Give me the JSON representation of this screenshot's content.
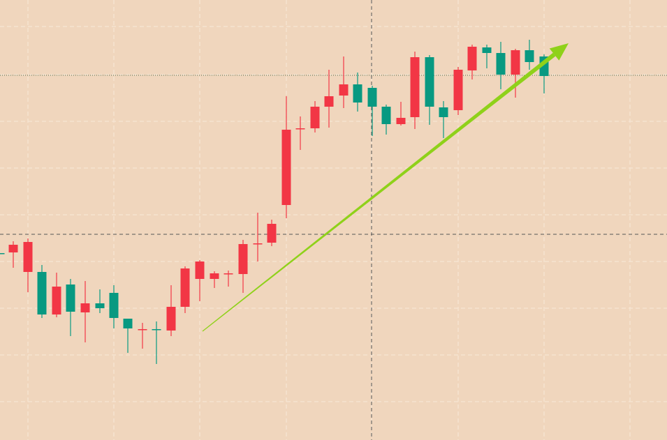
{
  "chart_data": {
    "type": "candlestick",
    "title": "",
    "xlabel": "",
    "ylabel": "",
    "ylim": [
      0,
      631
    ],
    "grid": true,
    "colors": {
      "background": "#f0d6bd",
      "grid": "#f6e3d0",
      "up": "#f23645",
      "down": "#089981",
      "arrow": "#8fd11a",
      "crosshair": "#555555",
      "level_line": "#4a6a4a"
    },
    "crosshair": {
      "x": 532,
      "y": 295
    },
    "level_line": 523,
    "trend_arrow": {
      "from": [
        290,
        156
      ],
      "to": [
        814,
        569
      ]
    },
    "candles": [
      {
        "x": 0,
        "o": 268,
        "c": 267,
        "h": 268,
        "l": 267
      },
      {
        "x": 19,
        "o": 269,
        "c": 280,
        "h": 285,
        "l": 247
      },
      {
        "x": 40,
        "o": 241,
        "c": 284,
        "h": 289,
        "l": 212
      },
      {
        "x": 60,
        "o": 241,
        "c": 180,
        "h": 251,
        "l": 175
      },
      {
        "x": 81,
        "o": 180,
        "c": 220,
        "h": 240,
        "l": 176
      },
      {
        "x": 101,
        "o": 223,
        "c": 184,
        "h": 231,
        "l": 149
      },
      {
        "x": 122,
        "o": 183,
        "c": 196,
        "h": 228,
        "l": 140
      },
      {
        "x": 143,
        "o": 196,
        "c": 189,
        "h": 216,
        "l": 182
      },
      {
        "x": 163,
        "o": 211,
        "c": 175,
        "h": 222,
        "l": 160
      },
      {
        "x": 183,
        "o": 174,
        "c": 160,
        "h": 174,
        "l": 125
      },
      {
        "x": 204,
        "o": 159,
        "c": 159,
        "h": 168,
        "l": 131
      },
      {
        "x": 224,
        "o": 159,
        "c": 158,
        "h": 170,
        "l": 109
      },
      {
        "x": 245,
        "o": 157,
        "c": 191,
        "h": 222,
        "l": 149
      },
      {
        "x": 265,
        "o": 191,
        "c": 246,
        "h": 249,
        "l": 182
      },
      {
        "x": 286,
        "o": 231,
        "c": 256,
        "h": 258,
        "l": 199
      },
      {
        "x": 307,
        "o": 231,
        "c": 239,
        "h": 242,
        "l": 218
      },
      {
        "x": 327,
        "o": 239,
        "c": 239,
        "h": 243,
        "l": 220
      },
      {
        "x": 348,
        "o": 238,
        "c": 281,
        "h": 287,
        "l": 211
      },
      {
        "x": 369,
        "o": 282,
        "c": 282,
        "h": 326,
        "l": 256
      },
      {
        "x": 389,
        "o": 283,
        "c": 310,
        "h": 316,
        "l": 278
      },
      {
        "x": 410,
        "o": 337,
        "c": 445,
        "h": 493,
        "l": 318
      },
      {
        "x": 430,
        "o": 446,
        "c": 447,
        "h": 464,
        "l": 416
      },
      {
        "x": 451,
        "o": 447,
        "c": 478,
        "h": 486,
        "l": 441
      },
      {
        "x": 471,
        "o": 478,
        "c": 493,
        "h": 531,
        "l": 448
      },
      {
        "x": 492,
        "o": 494,
        "c": 510,
        "h": 550,
        "l": 476
      },
      {
        "x": 512,
        "o": 510,
        "c": 484,
        "h": 527,
        "l": 471
      },
      {
        "x": 533,
        "o": 505,
        "c": 478,
        "h": 508,
        "l": 436
      },
      {
        "x": 553,
        "o": 478,
        "c": 453,
        "h": 481,
        "l": 438
      },
      {
        "x": 574,
        "o": 453,
        "c": 462,
        "h": 485,
        "l": 451
      },
      {
        "x": 594,
        "o": 463,
        "c": 549,
        "h": 557,
        "l": 446
      },
      {
        "x": 615,
        "o": 549,
        "c": 478,
        "h": 552,
        "l": 452
      },
      {
        "x": 635,
        "o": 477,
        "c": 463,
        "h": 486,
        "l": 433
      },
      {
        "x": 656,
        "o": 473,
        "c": 531,
        "h": 535,
        "l": 466
      },
      {
        "x": 676,
        "o": 530,
        "c": 564,
        "h": 567,
        "l": 517
      },
      {
        "x": 697,
        "o": 563,
        "c": 555,
        "h": 567,
        "l": 533
      },
      {
        "x": 717,
        "o": 555,
        "c": 524,
        "h": 571,
        "l": 503
      },
      {
        "x": 738,
        "o": 524,
        "c": 559,
        "h": 561,
        "l": 491
      },
      {
        "x": 758,
        "o": 559,
        "c": 542,
        "h": 574,
        "l": 531
      },
      {
        "x": 779,
        "o": 550,
        "c": 522,
        "h": 553,
        "l": 497
      }
    ]
  }
}
